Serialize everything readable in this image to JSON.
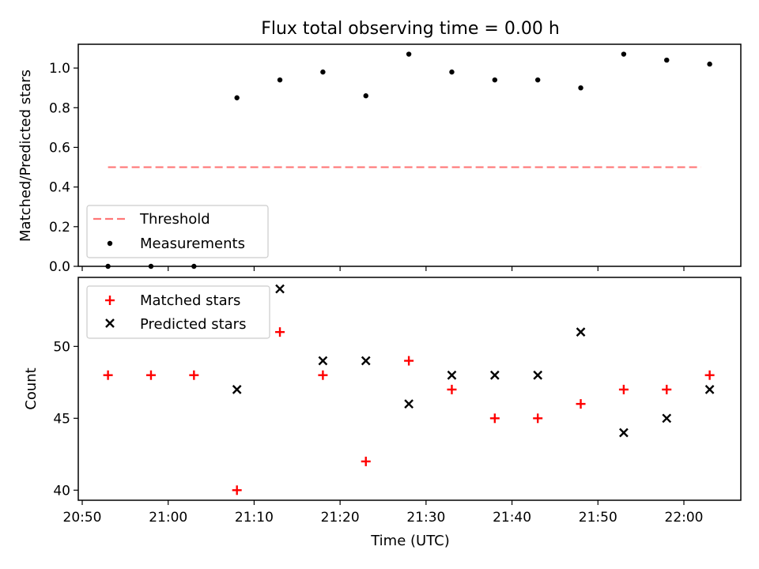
{
  "chart_data": [
    {
      "type": "scatter",
      "title": "Flux total observing time = 0.00 h",
      "xlabel": "",
      "ylabel": "Matched/Predicted stars",
      "ylim": [
        0.0,
        1.12
      ],
      "yticks": [
        "0.0",
        "0.2",
        "0.4",
        "0.6",
        "0.8",
        "1.0"
      ],
      "x": [
        "20:53",
        "20:58",
        "21:03",
        "21:08",
        "21:13",
        "21:18",
        "21:23",
        "21:28",
        "21:33",
        "21:38",
        "21:43",
        "21:48",
        "21:53",
        "21:58",
        "22:03"
      ],
      "series": [
        {
          "name": "Measurements",
          "color": "#000000",
          "marker": "dot",
          "values": [
            0.0,
            0.0,
            0.0,
            0.85,
            0.94,
            0.98,
            0.86,
            1.07,
            0.98,
            0.94,
            0.94,
            0.9,
            1.07,
            1.04,
            1.02
          ]
        },
        {
          "name": "Threshold",
          "color": "#ff7777",
          "style": "dashed",
          "values": [
            0.5,
            0.5
          ]
        }
      ],
      "threshold_x": [
        "20:53",
        "22:02"
      ],
      "legend": "lower-left"
    },
    {
      "type": "scatter",
      "title": "",
      "xlabel": "Time (UTC)",
      "ylabel": "Count",
      "ylim": [
        39.3,
        54.8
      ],
      "yticks": [
        "40",
        "45",
        "50"
      ],
      "xticks": [
        "20:50",
        "21:00",
        "21:10",
        "21:20",
        "21:30",
        "21:40",
        "21:50",
        "22:00"
      ],
      "x": [
        "20:53",
        "20:58",
        "21:03",
        "21:08",
        "21:13",
        "21:18",
        "21:23",
        "21:28",
        "21:33",
        "21:38",
        "21:43",
        "21:48",
        "21:53",
        "21:58",
        "22:03"
      ],
      "series": [
        {
          "name": "Matched stars",
          "color": "#ff0000",
          "marker": "plus",
          "values": [
            48,
            48,
            48,
            40,
            51,
            48,
            42,
            49,
            47,
            45,
            45,
            46,
            47,
            47,
            48
          ]
        },
        {
          "name": "Predicted stars",
          "color": "#000000",
          "marker": "x",
          "points": [
            [
              3,
              47
            ],
            [
              4,
              54
            ],
            [
              5,
              49
            ],
            [
              6,
              49
            ],
            [
              7,
              46
            ],
            [
              8,
              48
            ],
            [
              9,
              48
            ],
            [
              10,
              48
            ],
            [
              11,
              51
            ],
            [
              12,
              44
            ],
            [
              13,
              45
            ],
            [
              14,
              47
            ]
          ]
        }
      ],
      "legend": "upper-left"
    }
  ]
}
